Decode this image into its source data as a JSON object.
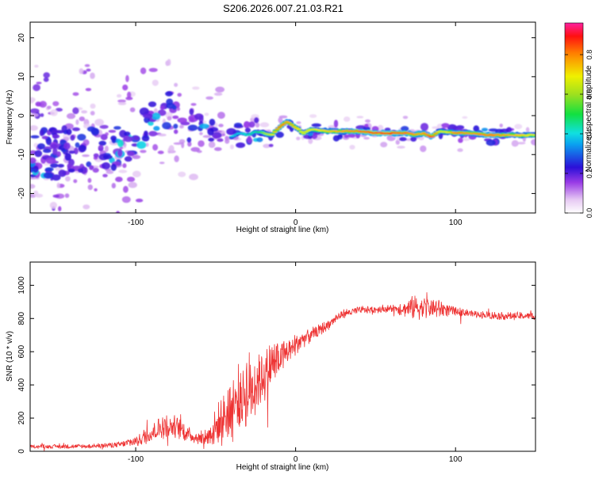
{
  "page_title": "S206.2026.007.21.03.R21",
  "chart_data": [
    {
      "type": "heatmap",
      "title": "S206.2026.007.21.03.R21",
      "xlabel": "Height of straight line (km)",
      "ylabel": "Frequency (Hz)",
      "xlim": [
        -166,
        150
      ],
      "ylim": [
        -25,
        24
      ],
      "xticks": [
        -100,
        0,
        100
      ],
      "yticks": [
        -20,
        -10,
        0,
        10,
        20
      ],
      "ridge": {
        "description": "dominant spectral peak frequency (Hz) vs height (km)",
        "x": [
          -166,
          -150,
          -140,
          -130,
          -120,
          -110,
          -100,
          -95,
          -90,
          -85,
          -80,
          -75,
          -70,
          -65,
          -60,
          -55,
          -50,
          -45,
          -40,
          -35,
          -30,
          -25,
          -20,
          -15,
          -10,
          -5,
          0,
          5,
          10,
          20,
          30,
          40,
          50,
          60,
          70,
          75,
          80,
          85,
          90,
          95,
          100,
          110,
          120,
          130,
          140,
          150
        ],
        "freq": [
          -11,
          -10,
          -9.5,
          -8,
          -7.5,
          -8.5,
          -6,
          -3,
          -1,
          -3,
          2,
          -1.5,
          -4,
          -3,
          -2.5,
          -3.5,
          -3,
          -4,
          -5.5,
          -4.5,
          -5,
          -4,
          -4.5,
          -5,
          -3,
          -1.5,
          -3,
          -4.5,
          -3.5,
          -4,
          -4,
          -4,
          -4.5,
          -4.5,
          -4.5,
          -5,
          -4.5,
          -5.5,
          -4,
          -4.2,
          -4.5,
          -4.5,
          -5,
          -5,
          -5,
          -5
        ],
        "amp": [
          0.18,
          0.18,
          0.2,
          0.2,
          0.22,
          0.25,
          0.25,
          0.3,
          0.3,
          0.3,
          0.35,
          0.3,
          0.3,
          0.3,
          0.33,
          0.33,
          0.35,
          0.38,
          0.4,
          0.4,
          0.45,
          0.45,
          0.6,
          0.7,
          0.85,
          0.8,
          0.75,
          0.7,
          0.7,
          0.75,
          0.8,
          0.85,
          0.9,
          0.9,
          0.85,
          0.8,
          0.8,
          0.9,
          0.7,
          0.7,
          0.85,
          0.8,
          0.85,
          0.8,
          0.75,
          0.7
        ]
      },
      "colorbar": {
        "label": "Normalized spectral amplitude",
        "range": [
          0,
          0.96
        ],
        "ticks": [
          0.0,
          0.2,
          0.4,
          0.6,
          0.8
        ]
      }
    },
    {
      "type": "line",
      "xlabel": "Height of straight line (km)",
      "ylabel": "SNR (10 * v/v)",
      "xlim": [
        -166,
        150
      ],
      "ylim": [
        0,
        1140
      ],
      "xticks": [
        -100,
        0,
        100
      ],
      "yticks": [
        0,
        200,
        400,
        600,
        800,
        1000
      ],
      "series": [
        {
          "name": "SNR",
          "color": "#ee3333",
          "envelope_x": [
            -166,
            -130,
            -110,
            -100,
            -90,
            -85,
            -80,
            -75,
            -70,
            -65,
            -60,
            -55,
            -50,
            -45,
            -40,
            -35,
            -30,
            -25,
            -20,
            -15,
            -10,
            -5,
            0,
            5,
            10,
            15,
            20,
            25,
            30,
            40,
            50,
            60,
            70,
            75,
            80,
            90,
            95,
            100,
            110,
            120,
            130,
            140,
            150
          ],
          "envelope_mean": [
            28,
            30,
            40,
            60,
            110,
            140,
            150,
            150,
            120,
            90,
            80,
            90,
            140,
            200,
            260,
            320,
            360,
            410,
            460,
            520,
            560,
            600,
            640,
            680,
            700,
            730,
            760,
            800,
            830,
            850,
            855,
            860,
            860,
            870,
            865,
            860,
            850,
            845,
            830,
            820,
            815,
            815,
            815
          ],
          "envelope_amp": [
            12,
            15,
            20,
            40,
            60,
            80,
            80,
            70,
            60,
            40,
            40,
            60,
            120,
            180,
            220,
            250,
            250,
            220,
            200,
            150,
            120,
            100,
            80,
            60,
            50,
            40,
            35,
            30,
            30,
            25,
            25,
            25,
            60,
            80,
            80,
            60,
            40,
            30,
            25,
            25,
            25,
            25,
            25
          ]
        }
      ]
    }
  ]
}
